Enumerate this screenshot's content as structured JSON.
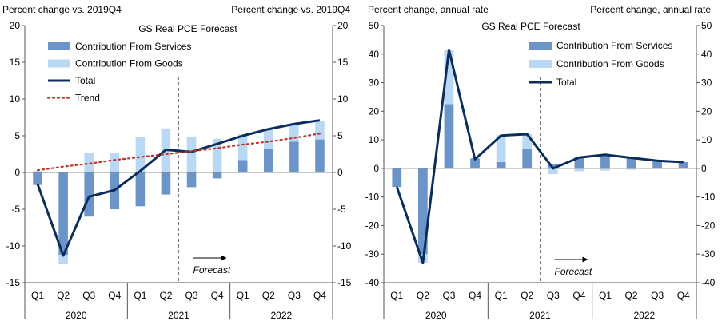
{
  "chart_data": [
    {
      "type": "bar",
      "stacked": true,
      "title": "GS Real PCE Forecast",
      "ylabel_left": "Percent change vs. 2019Q4",
      "ylabel_right": "Percent change vs. 2019Q4",
      "ylim": [
        -15,
        20
      ],
      "yticks": [
        -15,
        -10,
        -5,
        0,
        5,
        10,
        15,
        20
      ],
      "categories": [
        "Q1",
        "Q2",
        "Q3",
        "Q4",
        "Q1",
        "Q2",
        "Q3",
        "Q4",
        "Q1",
        "Q2",
        "Q3",
        "Q4"
      ],
      "years": [
        "2020",
        "2021",
        "2022"
      ],
      "forecast_label": "Forecast",
      "forecast_start_index": 6,
      "series": [
        {
          "name": "Contribution From Services",
          "kind": "bar",
          "color": "#6b95c8",
          "values": [
            -1.7,
            -11.2,
            -6.0,
            -5.0,
            -4.6,
            -3.0,
            -2.0,
            -0.8,
            1.7,
            3.2,
            4.2,
            4.5
          ]
        },
        {
          "name": "Contribution From Goods",
          "kind": "bar",
          "color": "#b8d8f3",
          "values": [
            0.2,
            -1.2,
            2.7,
            2.6,
            4.8,
            6.0,
            4.8,
            4.6,
            3.5,
            2.8,
            2.4,
            2.5
          ]
        },
        {
          "name": "Total",
          "kind": "line",
          "color": "#0b2d5b",
          "values": [
            -1.6,
            -11.3,
            -3.3,
            -2.4,
            0.2,
            3.1,
            2.8,
            3.9,
            5.0,
            5.9,
            6.6,
            7.1
          ]
        },
        {
          "name": "Trend",
          "kind": "dotted-line",
          "color": "#c0302b",
          "values": [
            0.3,
            0.8,
            1.2,
            1.7,
            2.1,
            2.5,
            2.9,
            3.3,
            3.8,
            4.2,
            4.7,
            5.3
          ]
        }
      ]
    },
    {
      "type": "bar",
      "stacked": true,
      "title": "GS Real PCE Forecast",
      "ylabel_left": "Percent change, annual rate",
      "ylabel_right": "Percent change, annual rate",
      "ylim": [
        -40,
        50
      ],
      "yticks": [
        -40,
        -30,
        -20,
        -10,
        0,
        10,
        20,
        30,
        40,
        50
      ],
      "categories": [
        "Q1",
        "Q2",
        "Q3",
        "Q4",
        "Q1",
        "Q2",
        "Q3",
        "Q4",
        "Q1",
        "Q2",
        "Q3",
        "Q4"
      ],
      "years": [
        "2020",
        "2021",
        "2022"
      ],
      "forecast_label": "Forecast",
      "forecast_start_index": 6,
      "series": [
        {
          "name": "Contribution From Services",
          "kind": "bar",
          "color": "#6b95c8",
          "values": [
            -6.5,
            -30.0,
            22.5,
            3.5,
            2.2,
            7.0,
            1.5,
            4.0,
            4.8,
            3.8,
            2.8,
            2.2
          ]
        },
        {
          "name": "Contribution From Goods",
          "kind": "bar",
          "color": "#b8d8f3",
          "values": [
            0.0,
            -3.0,
            19.0,
            0.0,
            9.5,
            5.0,
            -2.0,
            -1.0,
            -0.8,
            -0.5,
            0.2,
            0.0
          ]
        },
        {
          "name": "Total",
          "kind": "line",
          "color": "#0b2d5b",
          "values": [
            -6.5,
            -33.0,
            41.5,
            3.2,
            11.5,
            12.0,
            0.0,
            3.8,
            4.8,
            3.7,
            2.7,
            2.2
          ]
        }
      ]
    }
  ]
}
